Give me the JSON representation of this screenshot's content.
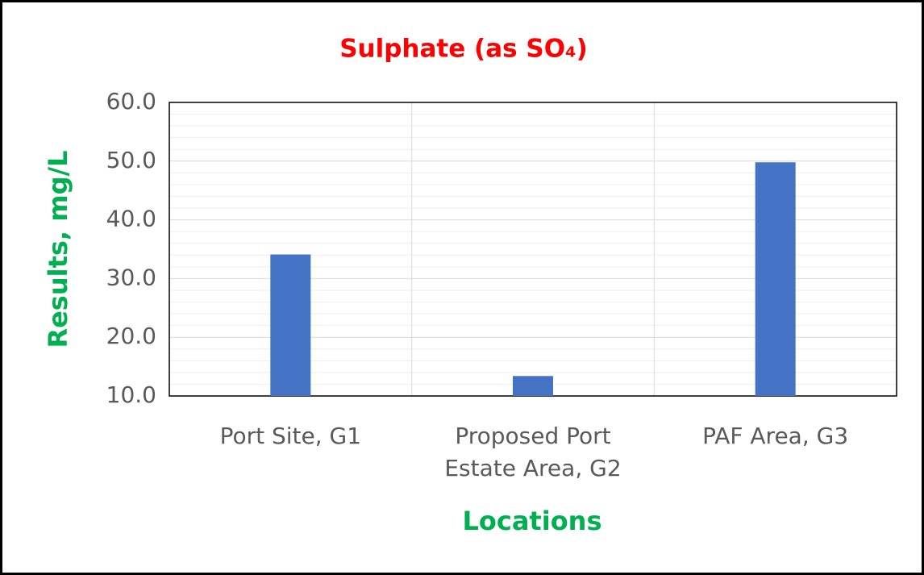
{
  "chart_data": {
    "type": "bar",
    "title": "Sulphate (as SO₄)",
    "x_label": "Locations",
    "y_label": "Results, mg/L",
    "categories": [
      "Port Site, G1",
      "Proposed Port Estate Area, G2",
      "PAF Area, G3"
    ],
    "values": [
      34.1,
      13.4,
      49.8
    ],
    "color": "#4472c4",
    "ylim": [
      10,
      60
    ],
    "yticks": [
      {
        "value": 10,
        "label": "10.0"
      },
      {
        "value": 20,
        "label": "20.0"
      },
      {
        "value": 30,
        "label": "30.0"
      },
      {
        "value": 40,
        "label": "40.0"
      },
      {
        "value": 50,
        "label": "50.0"
      },
      {
        "value": 60,
        "label": "60.0"
      }
    ],
    "grid": true,
    "minor_grid": true
  }
}
